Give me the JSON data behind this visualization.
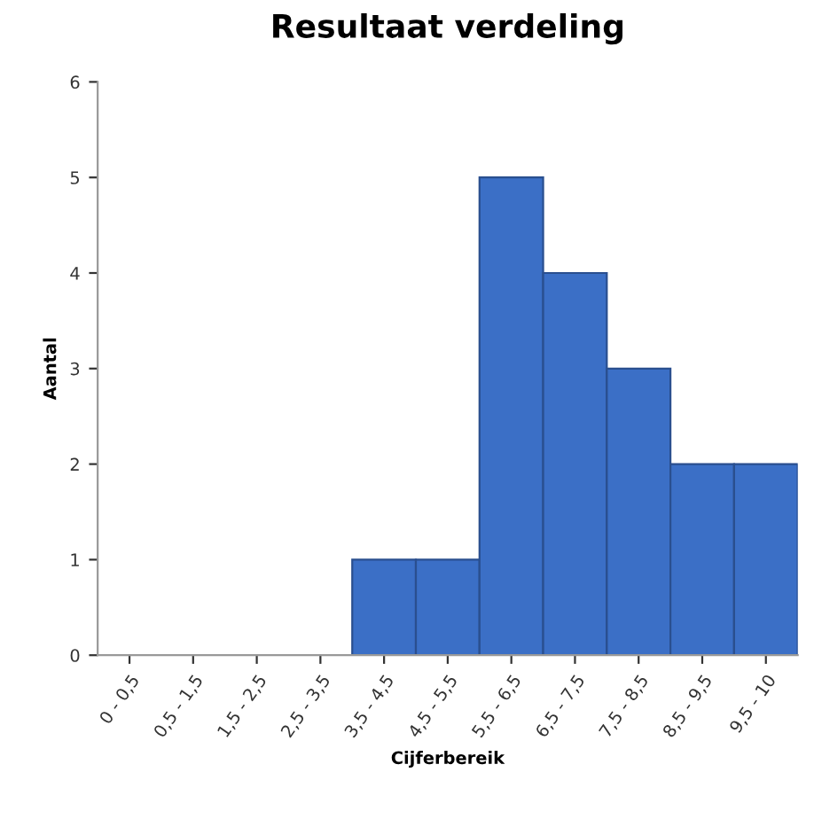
{
  "chart_data": {
    "type": "bar",
    "title": "Resultaat verdeling",
    "xlabel": "Cijferbereik",
    "ylabel": "Aantal",
    "categories": [
      "0 - 0,5",
      "0,5 - 1,5",
      "1,5 - 2,5",
      "2,5 - 3,5",
      "3,5 - 4,5",
      "4,5 - 5,5",
      "5,5 - 6,5",
      "6,5 - 7,5",
      "7,5 - 8,5",
      "8,5 - 9,5",
      "9,5 - 10"
    ],
    "values": [
      0,
      0,
      0,
      0,
      1,
      1,
      5,
      4,
      3,
      2,
      2
    ],
    "color": "#3b6fc6",
    "ylim": [
      0,
      6
    ],
    "yticks": [
      0,
      1,
      2,
      3,
      4,
      5,
      6
    ],
    "grid": false,
    "legend": false
  }
}
